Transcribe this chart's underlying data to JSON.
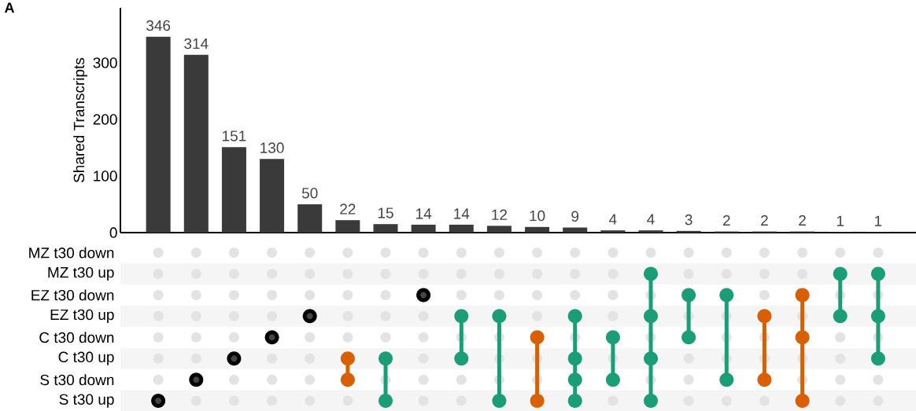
{
  "chart_data": {
    "type": "bar",
    "ylabel": "Shared Transcripts",
    "annotations": [
      "A",
      "MZ t30 down",
      "MZ t30 up",
      "EZ t30 down",
      "EZ t30 up",
      "C t30 down",
      "C t30 up",
      "S t30 down",
      "S t30 up"
    ],
    "categories": [
      null,
      null,
      null,
      null,
      null,
      null,
      null,
      null,
      null,
      null,
      null,
      null,
      null,
      null,
      null,
      null,
      null,
      null,
      null,
      null
    ],
    "values": [
      346,
      314,
      151,
      130,
      50,
      22,
      15,
      14,
      14,
      12,
      10,
      9,
      4,
      4,
      3,
      2,
      2,
      2,
      1,
      1
    ],
    "color": "#3a3a3a",
    "ylim": [
      0,
      397
    ],
    "yticks": [
      0,
      100,
      200,
      300
    ],
    "data_labels": true
  }
}
